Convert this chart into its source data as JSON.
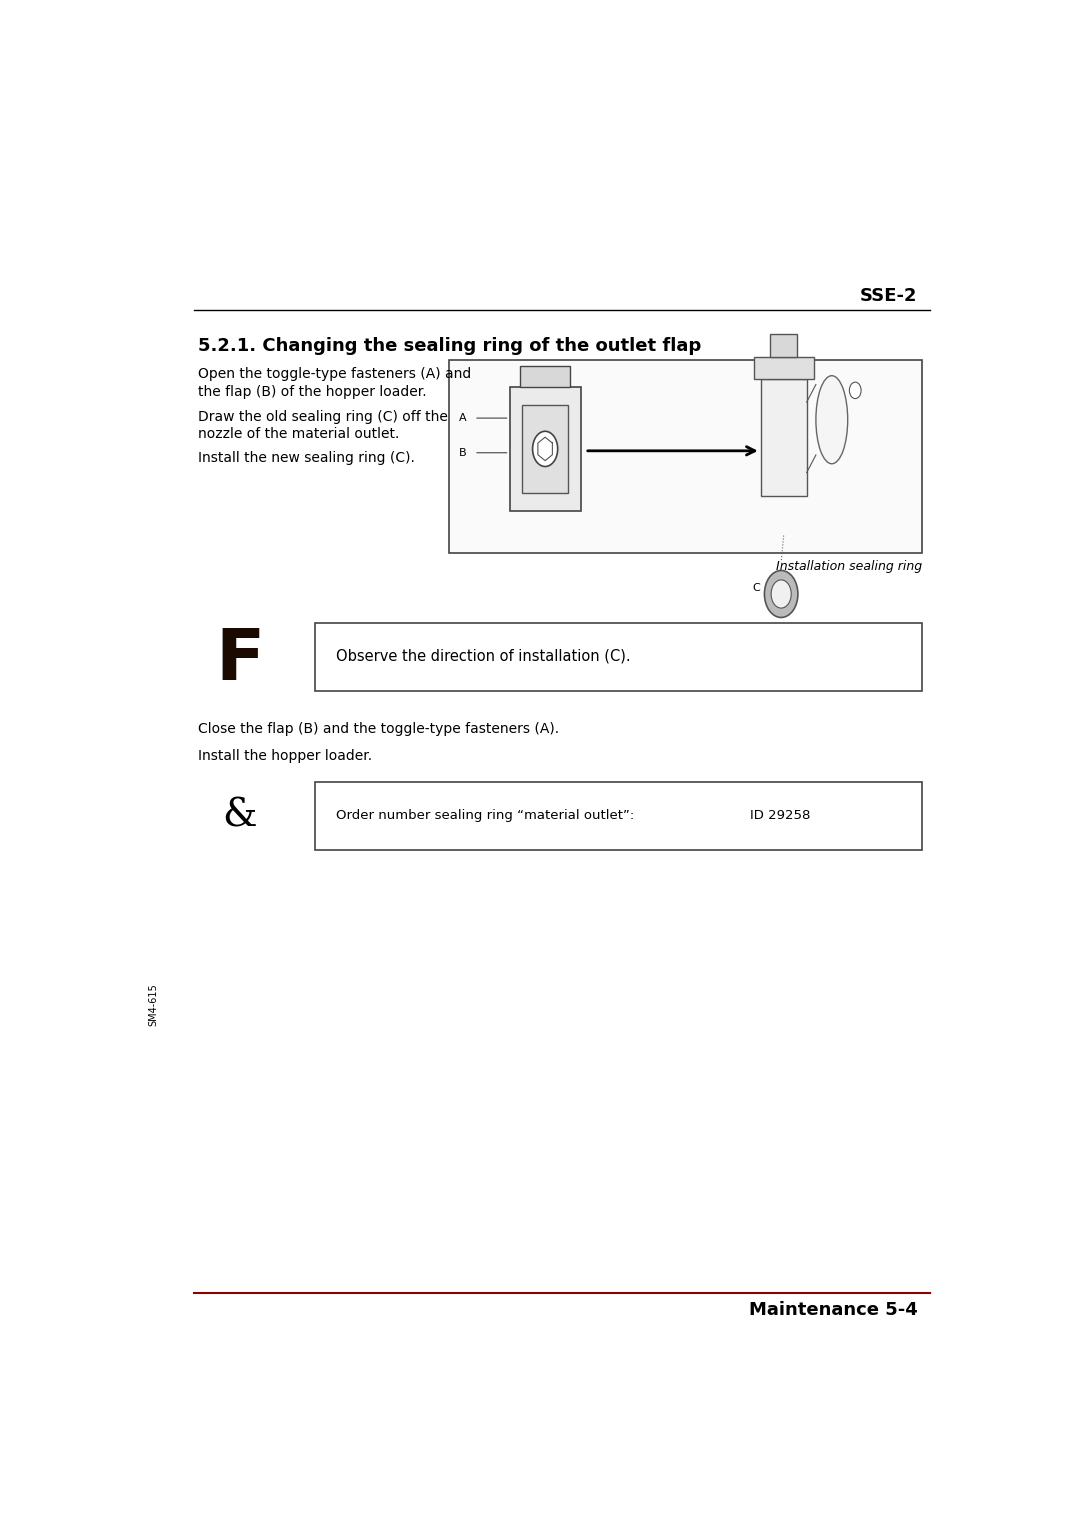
{
  "page_width": 10.8,
  "page_height": 15.25,
  "bg_color": "#ffffff",
  "header_line_color": "#000000",
  "footer_line_color": "#8B0000",
  "header_text": "SSE-2",
  "footer_text": "Maintenance 5-4",
  "side_text": "SM4-615",
  "section_title": "5.2.1. Changing the sealing ring of the outlet flap",
  "para1_l1": "Open the toggle-type fasteners (A) and",
  "para1_l2": "the flap (B) of the hopper loader.",
  "para2_l1": "Draw the old sealing ring (C) off the",
  "para2_l2": "nozzle of the material outlet.",
  "para3": "Install the new sealing ring (C).",
  "img_caption": "Installation sealing ring",
  "notice_symbol": "F",
  "notice_text": "Observe the direction of installation (C).",
  "para4": "Close the flap (B) and the toggle-type fasteners (A).",
  "para5": "Install the hopper loader.",
  "order_symbol": "&",
  "order_text": "Order number sealing ring “material outlet”:",
  "order_id": "ID 29258",
  "text_color": "#000000",
  "header_font_size": 13,
  "section_title_font_size": 13,
  "body_font_size": 10,
  "caption_font_size": 9,
  "notice_symbol_font_size": 52,
  "order_symbol_font_size": 28
}
